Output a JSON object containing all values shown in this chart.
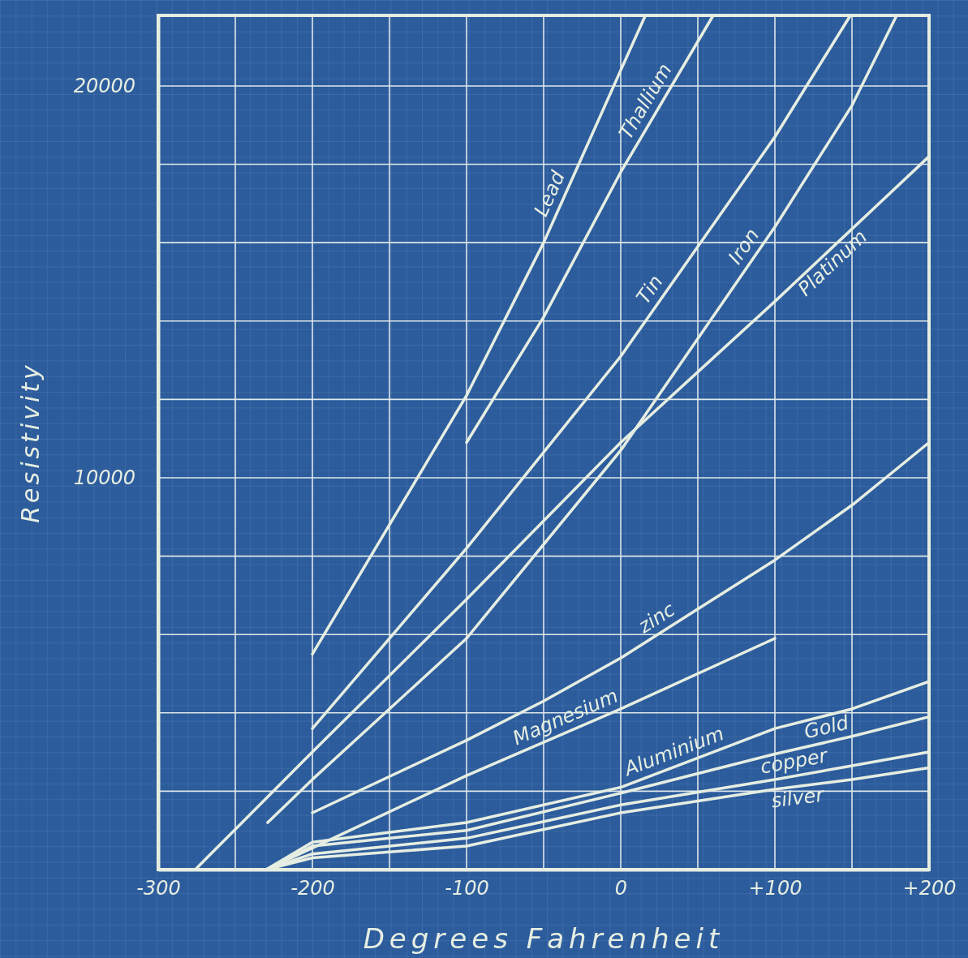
{
  "chart_data": {
    "type": "line",
    "xlabel": "Degrees Fahrenheit",
    "ylabel": "Resistivity",
    "xlim": [
      -300,
      200
    ],
    "ylim": [
      0,
      21800
    ],
    "xticks": [
      -300,
      {
        "value": -250,
        "label": null
      },
      -200,
      {
        "value": -150,
        "label": null
      },
      -100,
      {
        "value": -50,
        "label": null
      },
      0,
      {
        "value": 50,
        "label": null
      },
      {
        "value": 100,
        "label": "+100"
      },
      {
        "value": 150,
        "label": null
      },
      {
        "value": 200,
        "label": "+200"
      }
    ],
    "yticks": [
      {
        "value": 2000,
        "label": null
      },
      {
        "value": 4000,
        "label": null
      },
      {
        "value": 6000,
        "label": null
      },
      {
        "value": 8000,
        "label": null
      },
      10000,
      {
        "value": 12000,
        "label": null
      },
      {
        "value": 14000,
        "label": null
      },
      {
        "value": 16000,
        "label": null
      },
      {
        "value": 18000,
        "label": null
      },
      20000
    ],
    "grid": true,
    "marker": "none",
    "line_style": "solid",
    "series": [
      {
        "name": "Lead",
        "color": "#e6eee2",
        "x": [
          -200,
          -150,
          -100,
          -50,
          0,
          16
        ],
        "values": [
          5500,
          8800,
          12100,
          16000,
          20400,
          21800
        ]
      },
      {
        "name": "Thallium",
        "color": "#e6eee2",
        "x": [
          -100,
          -50,
          0,
          60
        ],
        "values": [
          10900,
          14100,
          17800,
          21800
        ]
      },
      {
        "name": "Tin",
        "color": "#e6eee2",
        "x": [
          -200,
          -100,
          0,
          100,
          149
        ],
        "values": [
          3600,
          8200,
          13100,
          18700,
          21800
        ]
      },
      {
        "name": "Iron",
        "color": "#e6eee2",
        "x": [
          -229,
          -200,
          -100,
          0,
          100,
          150,
          179
        ],
        "values": [
          1200,
          2300,
          5900,
          10700,
          16400,
          19500,
          21800
        ]
      },
      {
        "name": "Platinum",
        "color": "#e6eee2",
        "x": [
          -276,
          -200,
          -100,
          0,
          100,
          200
        ],
        "values": [
          0,
          3000,
          6900,
          10900,
          14500,
          18200
        ]
      },
      {
        "name": "zinc",
        "color": "#e6eee2",
        "x": [
          -200,
          -100,
          -50,
          0,
          100,
          150,
          200
        ],
        "values": [
          1450,
          3300,
          4300,
          5400,
          7900,
          9300,
          10900
        ]
      },
      {
        "name": "Magnesium",
        "color": "#e6eee2",
        "x": [
          -230,
          -200,
          -100,
          0,
          100
        ],
        "values": [
          0,
          550,
          2400,
          4100,
          5900
        ]
      },
      {
        "name": "Aluminium",
        "color": "#e6eee2",
        "x": [
          -230,
          -200,
          -100,
          0,
          100,
          150,
          200
        ],
        "values": [
          0,
          700,
          1200,
          2100,
          3600,
          4100,
          4800
        ]
      },
      {
        "name": "Gold",
        "color": "#e6eee2",
        "x": [
          -230,
          -200,
          -100,
          0,
          100,
          150,
          200
        ],
        "values": [
          0,
          600,
          1000,
          1950,
          2950,
          3400,
          3900
        ]
      },
      {
        "name": "copper",
        "color": "#e6eee2",
        "x": [
          -230,
          -200,
          -100,
          0,
          100,
          150,
          200
        ],
        "values": [
          0,
          400,
          800,
          1650,
          2300,
          2650,
          3000
        ]
      },
      {
        "name": "silver",
        "color": "#e6eee2",
        "x": [
          -230,
          -200,
          -100,
          0,
          100,
          150,
          200
        ],
        "values": [
          0,
          300,
          600,
          1450,
          2050,
          2300,
          2600
        ]
      }
    ]
  }
}
